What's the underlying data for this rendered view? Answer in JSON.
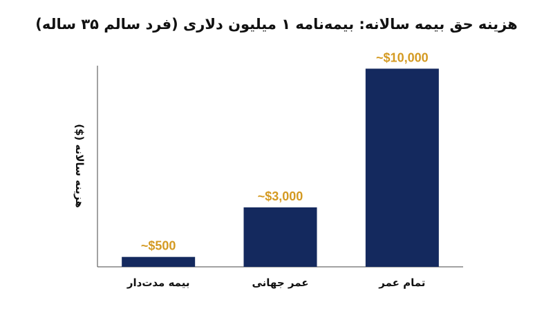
{
  "chart_data": {
    "type": "bar",
    "title": "هزینه حق بیمه سالانه: بیمه‌نامه ۱ میلیون دلاری (فرد سالم ۳۵ ساله)",
    "ylabel": "هزینه سالانه ($)",
    "xlabel": "",
    "categories": [
      "بیمه مدت‌دار",
      "عمر جهانی",
      "تمام عمر"
    ],
    "values": [
      500,
      3000,
      10000
    ],
    "data_labels": [
      "~$500",
      "~$3,000",
      "~$10,000"
    ],
    "ylim": [
      0,
      12000
    ],
    "grid": false,
    "legend": "none",
    "colors": {
      "bar": "#14295e",
      "data_label": "#d49a22",
      "axis": "#444444",
      "text": "#111111"
    }
  }
}
